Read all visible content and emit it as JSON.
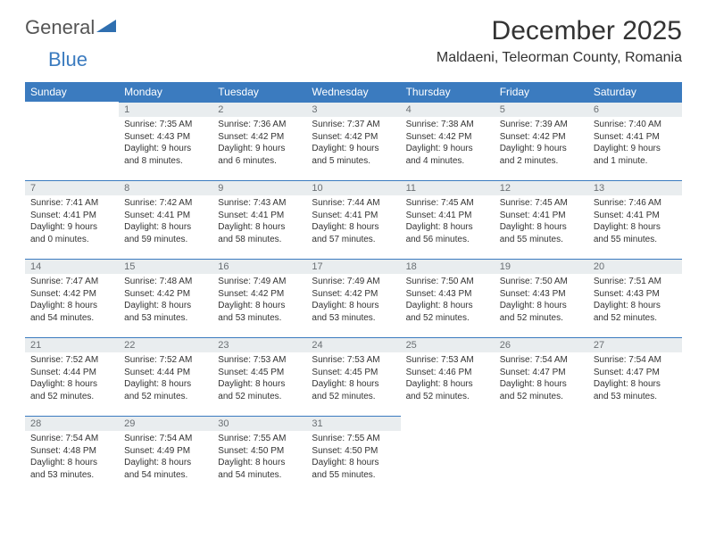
{
  "logo": {
    "part1": "General",
    "part2": "Blue"
  },
  "title": "December 2025",
  "location": "Maldaeni, Teleorman County, Romania",
  "colors": {
    "header_bg": "#3b7bbf",
    "header_text": "#ffffff",
    "daynum_bg": "#e9edef",
    "daynum_text": "#6a6f73",
    "cell_border": "#3b7bbf",
    "body_text": "#333333",
    "page_bg": "#ffffff"
  },
  "day_headers": [
    "Sunday",
    "Monday",
    "Tuesday",
    "Wednesday",
    "Thursday",
    "Friday",
    "Saturday"
  ],
  "weeks": [
    [
      null,
      {
        "n": "1",
        "sr": "Sunrise: 7:35 AM",
        "ss": "Sunset: 4:43 PM",
        "d1": "Daylight: 9 hours",
        "d2": "and 8 minutes."
      },
      {
        "n": "2",
        "sr": "Sunrise: 7:36 AM",
        "ss": "Sunset: 4:42 PM",
        "d1": "Daylight: 9 hours",
        "d2": "and 6 minutes."
      },
      {
        "n": "3",
        "sr": "Sunrise: 7:37 AM",
        "ss": "Sunset: 4:42 PM",
        "d1": "Daylight: 9 hours",
        "d2": "and 5 minutes."
      },
      {
        "n": "4",
        "sr": "Sunrise: 7:38 AM",
        "ss": "Sunset: 4:42 PM",
        "d1": "Daylight: 9 hours",
        "d2": "and 4 minutes."
      },
      {
        "n": "5",
        "sr": "Sunrise: 7:39 AM",
        "ss": "Sunset: 4:42 PM",
        "d1": "Daylight: 9 hours",
        "d2": "and 2 minutes."
      },
      {
        "n": "6",
        "sr": "Sunrise: 7:40 AM",
        "ss": "Sunset: 4:41 PM",
        "d1": "Daylight: 9 hours",
        "d2": "and 1 minute."
      }
    ],
    [
      {
        "n": "7",
        "sr": "Sunrise: 7:41 AM",
        "ss": "Sunset: 4:41 PM",
        "d1": "Daylight: 9 hours",
        "d2": "and 0 minutes."
      },
      {
        "n": "8",
        "sr": "Sunrise: 7:42 AM",
        "ss": "Sunset: 4:41 PM",
        "d1": "Daylight: 8 hours",
        "d2": "and 59 minutes."
      },
      {
        "n": "9",
        "sr": "Sunrise: 7:43 AM",
        "ss": "Sunset: 4:41 PM",
        "d1": "Daylight: 8 hours",
        "d2": "and 58 minutes."
      },
      {
        "n": "10",
        "sr": "Sunrise: 7:44 AM",
        "ss": "Sunset: 4:41 PM",
        "d1": "Daylight: 8 hours",
        "d2": "and 57 minutes."
      },
      {
        "n": "11",
        "sr": "Sunrise: 7:45 AM",
        "ss": "Sunset: 4:41 PM",
        "d1": "Daylight: 8 hours",
        "d2": "and 56 minutes."
      },
      {
        "n": "12",
        "sr": "Sunrise: 7:45 AM",
        "ss": "Sunset: 4:41 PM",
        "d1": "Daylight: 8 hours",
        "d2": "and 55 minutes."
      },
      {
        "n": "13",
        "sr": "Sunrise: 7:46 AM",
        "ss": "Sunset: 4:41 PM",
        "d1": "Daylight: 8 hours",
        "d2": "and 55 minutes."
      }
    ],
    [
      {
        "n": "14",
        "sr": "Sunrise: 7:47 AM",
        "ss": "Sunset: 4:42 PM",
        "d1": "Daylight: 8 hours",
        "d2": "and 54 minutes."
      },
      {
        "n": "15",
        "sr": "Sunrise: 7:48 AM",
        "ss": "Sunset: 4:42 PM",
        "d1": "Daylight: 8 hours",
        "d2": "and 53 minutes."
      },
      {
        "n": "16",
        "sr": "Sunrise: 7:49 AM",
        "ss": "Sunset: 4:42 PM",
        "d1": "Daylight: 8 hours",
        "d2": "and 53 minutes."
      },
      {
        "n": "17",
        "sr": "Sunrise: 7:49 AM",
        "ss": "Sunset: 4:42 PM",
        "d1": "Daylight: 8 hours",
        "d2": "and 53 minutes."
      },
      {
        "n": "18",
        "sr": "Sunrise: 7:50 AM",
        "ss": "Sunset: 4:43 PM",
        "d1": "Daylight: 8 hours",
        "d2": "and 52 minutes."
      },
      {
        "n": "19",
        "sr": "Sunrise: 7:50 AM",
        "ss": "Sunset: 4:43 PM",
        "d1": "Daylight: 8 hours",
        "d2": "and 52 minutes."
      },
      {
        "n": "20",
        "sr": "Sunrise: 7:51 AM",
        "ss": "Sunset: 4:43 PM",
        "d1": "Daylight: 8 hours",
        "d2": "and 52 minutes."
      }
    ],
    [
      {
        "n": "21",
        "sr": "Sunrise: 7:52 AM",
        "ss": "Sunset: 4:44 PM",
        "d1": "Daylight: 8 hours",
        "d2": "and 52 minutes."
      },
      {
        "n": "22",
        "sr": "Sunrise: 7:52 AM",
        "ss": "Sunset: 4:44 PM",
        "d1": "Daylight: 8 hours",
        "d2": "and 52 minutes."
      },
      {
        "n": "23",
        "sr": "Sunrise: 7:53 AM",
        "ss": "Sunset: 4:45 PM",
        "d1": "Daylight: 8 hours",
        "d2": "and 52 minutes."
      },
      {
        "n": "24",
        "sr": "Sunrise: 7:53 AM",
        "ss": "Sunset: 4:45 PM",
        "d1": "Daylight: 8 hours",
        "d2": "and 52 minutes."
      },
      {
        "n": "25",
        "sr": "Sunrise: 7:53 AM",
        "ss": "Sunset: 4:46 PM",
        "d1": "Daylight: 8 hours",
        "d2": "and 52 minutes."
      },
      {
        "n": "26",
        "sr": "Sunrise: 7:54 AM",
        "ss": "Sunset: 4:47 PM",
        "d1": "Daylight: 8 hours",
        "d2": "and 52 minutes."
      },
      {
        "n": "27",
        "sr": "Sunrise: 7:54 AM",
        "ss": "Sunset: 4:47 PM",
        "d1": "Daylight: 8 hours",
        "d2": "and 53 minutes."
      }
    ],
    [
      {
        "n": "28",
        "sr": "Sunrise: 7:54 AM",
        "ss": "Sunset: 4:48 PM",
        "d1": "Daylight: 8 hours",
        "d2": "and 53 minutes."
      },
      {
        "n": "29",
        "sr": "Sunrise: 7:54 AM",
        "ss": "Sunset: 4:49 PM",
        "d1": "Daylight: 8 hours",
        "d2": "and 54 minutes."
      },
      {
        "n": "30",
        "sr": "Sunrise: 7:55 AM",
        "ss": "Sunset: 4:50 PM",
        "d1": "Daylight: 8 hours",
        "d2": "and 54 minutes."
      },
      {
        "n": "31",
        "sr": "Sunrise: 7:55 AM",
        "ss": "Sunset: 4:50 PM",
        "d1": "Daylight: 8 hours",
        "d2": "and 55 minutes."
      },
      null,
      null,
      null
    ]
  ]
}
